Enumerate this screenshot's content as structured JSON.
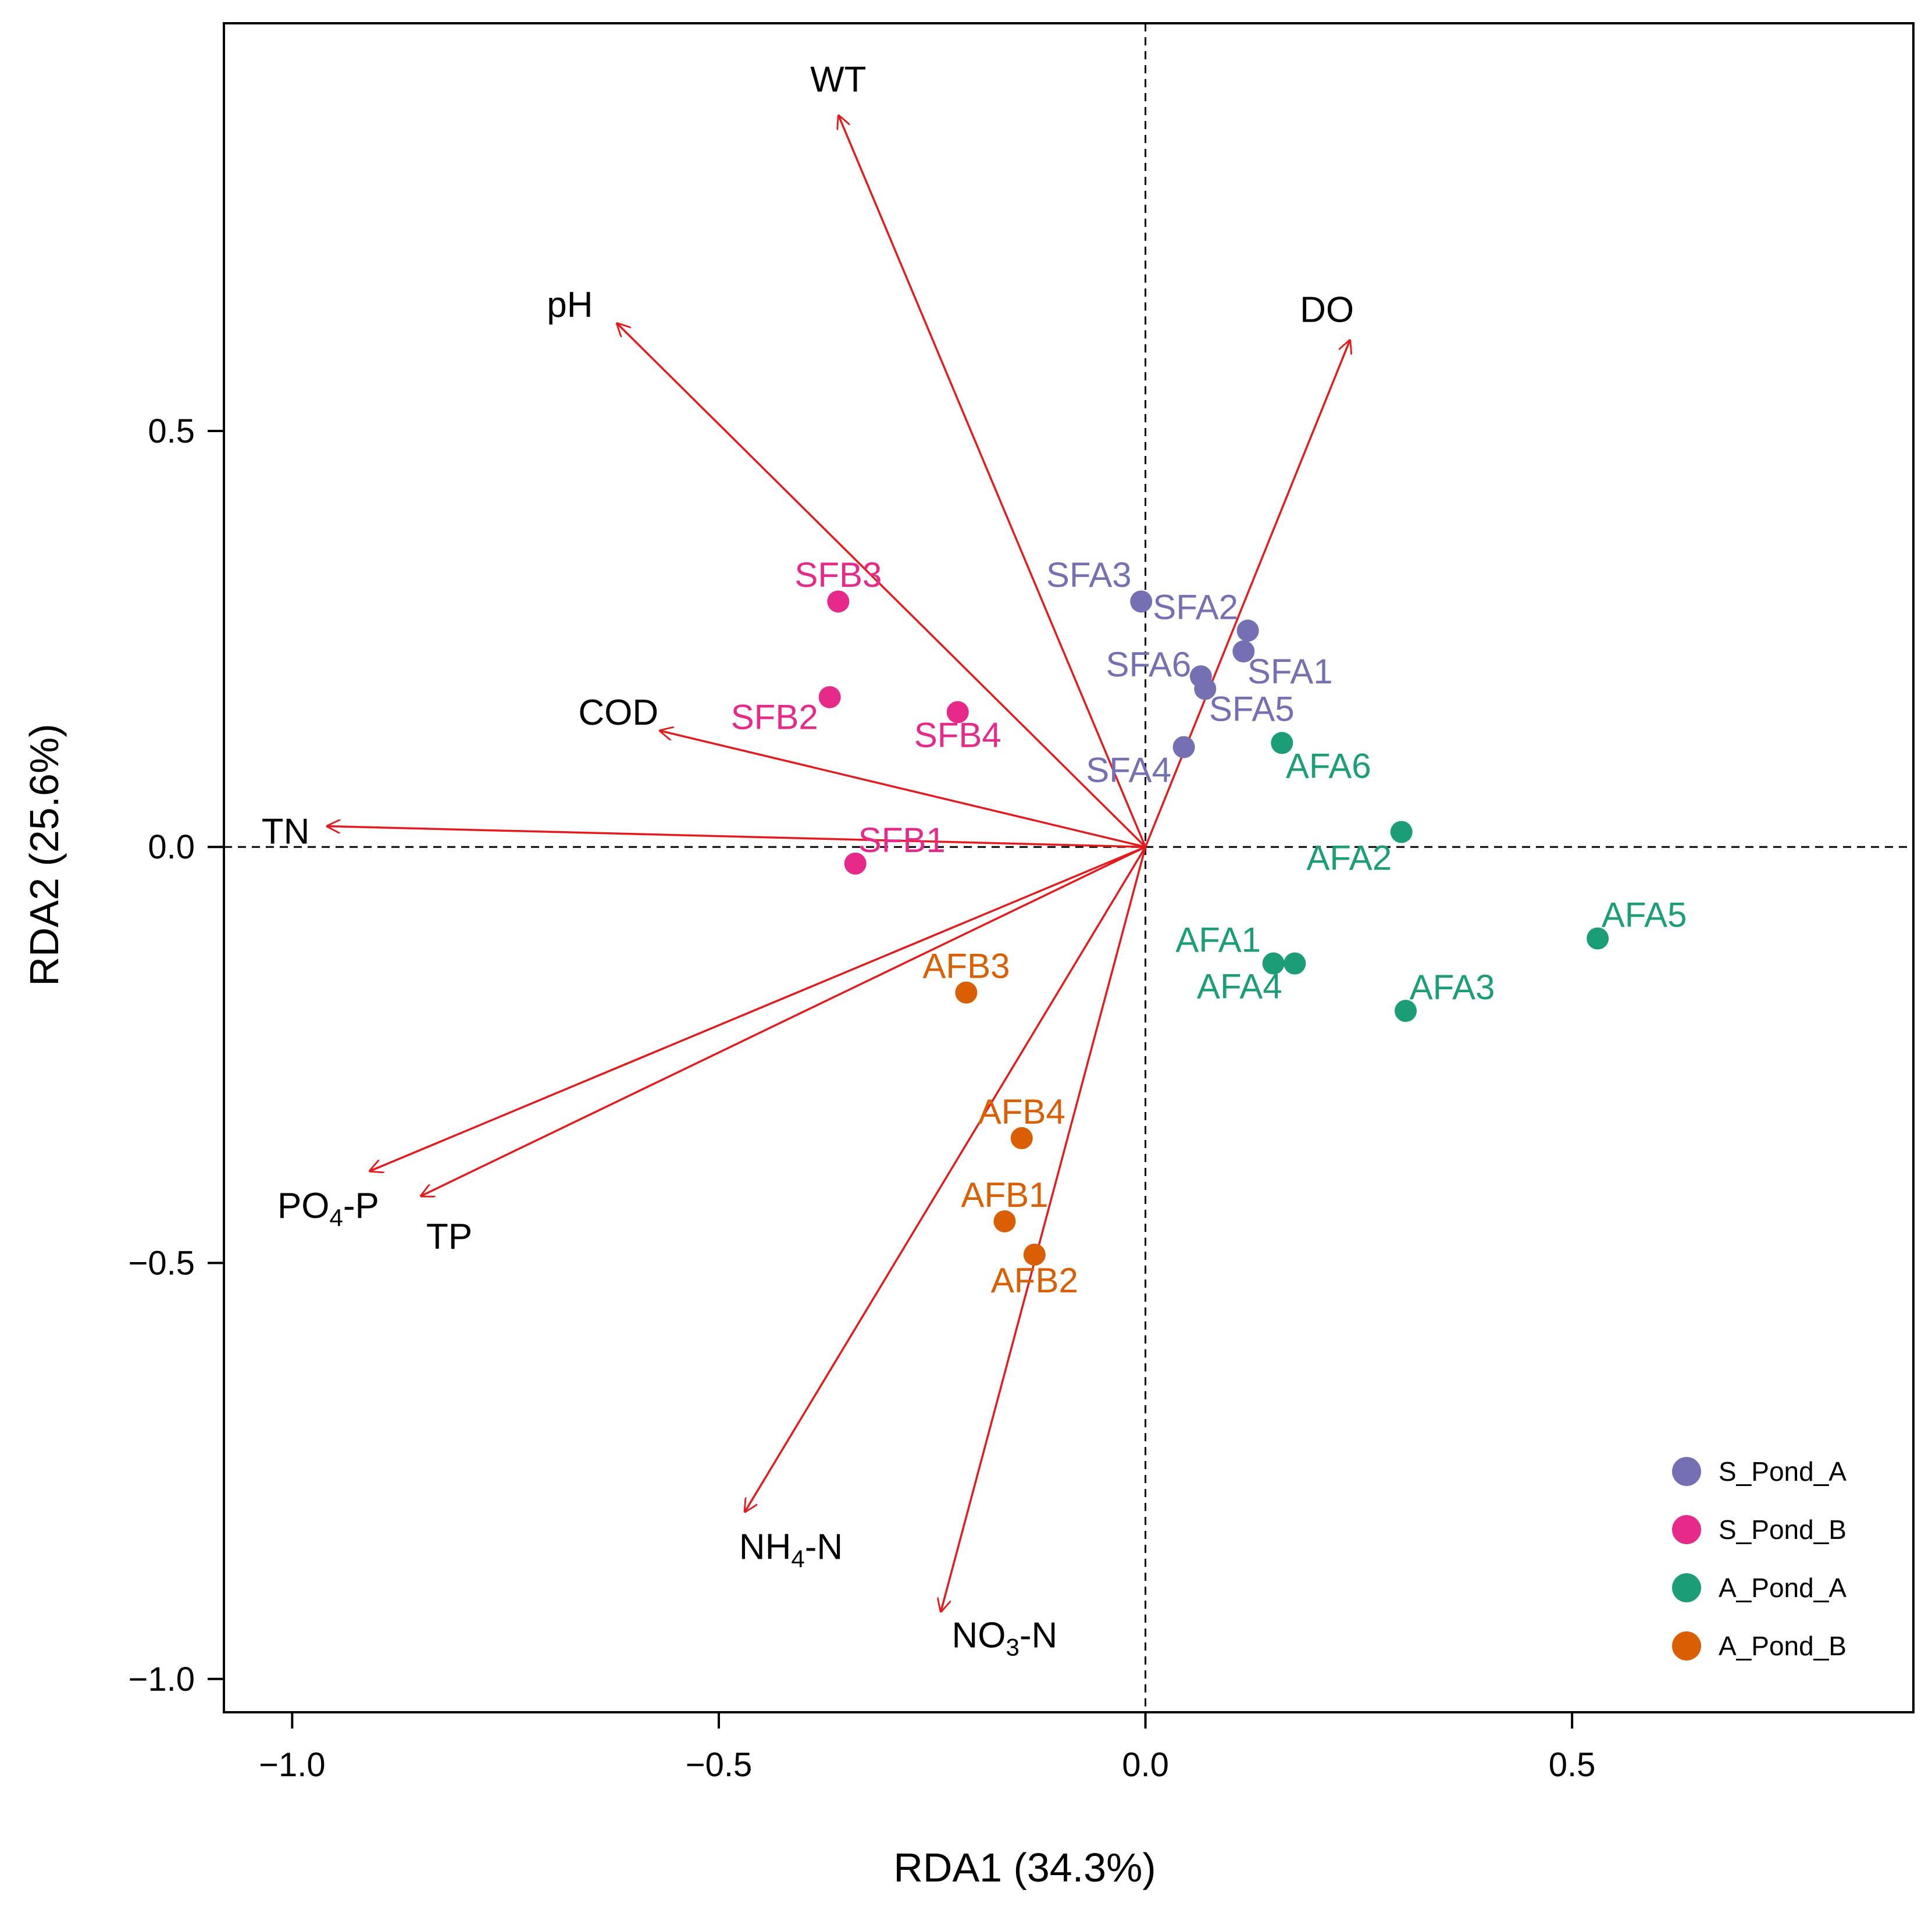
{
  "chart_data": {
    "type": "scatter",
    "subtype": "RDA biplot",
    "title": "",
    "xlabel": "RDA1 (34.3%)",
    "ylabel": "RDA2 (25.6%)",
    "xlim": [
      -1.08,
      0.9
    ],
    "ylim": [
      -1.04,
      0.99
    ],
    "xticks": [
      -1.0,
      -0.5,
      0.0,
      0.5
    ],
    "xtick_labels": [
      "−1.0",
      "−0.5",
      "0.0",
      "0.5"
    ],
    "yticks": [
      0.5,
      0.0,
      -0.5,
      -1.0
    ],
    "ytick_labels": [
      "0.5",
      "0.0",
      "−0.5",
      "−1.0"
    ],
    "reference_lines": {
      "x": 0,
      "y": 0,
      "style": "dashed"
    },
    "legend_position": "bottom-right",
    "arrow_color": "#e41a1c",
    "arrows": [
      {
        "name": "WT",
        "label": "WT",
        "x": -0.36,
        "y": 0.88
      },
      {
        "name": "pH",
        "label": "pH",
        "x": -0.62,
        "y": 0.63
      },
      {
        "name": "DO",
        "label": "DO",
        "x": 0.24,
        "y": 0.61
      },
      {
        "name": "COD",
        "label": "COD",
        "x": -0.57,
        "y": 0.14
      },
      {
        "name": "TN",
        "label": "TN",
        "x": -0.96,
        "y": 0.025
      },
      {
        "name": "PO4-P",
        "label_main": "PO",
        "label_sub": "4",
        "label_rest": "-P",
        "x": -0.91,
        "y": -0.39
      },
      {
        "name": "TP",
        "label": "TP",
        "x": -0.85,
        "y": -0.42
      },
      {
        "name": "NH4-N",
        "label_main": "NH",
        "label_sub": "4",
        "label_rest": "-N",
        "x": -0.47,
        "y": -0.8
      },
      {
        "name": "NO3-N",
        "label_main": "NO",
        "label_sub": "3",
        "label_rest": "-N",
        "x": -0.24,
        "y": -0.92
      }
    ],
    "series": [
      {
        "name": "S_Pond_A",
        "color": "#7570b3",
        "points": [
          {
            "label": "SFA1",
            "x": 0.115,
            "y": 0.235
          },
          {
            "label": "SFA2",
            "x": 0.12,
            "y": 0.26
          },
          {
            "label": "SFA3",
            "x": -0.005,
            "y": 0.295
          },
          {
            "label": "SFA4",
            "x": 0.045,
            "y": 0.12
          },
          {
            "label": "SFA5",
            "x": 0.07,
            "y": 0.19
          },
          {
            "label": "SFA6",
            "x": 0.065,
            "y": 0.205
          }
        ]
      },
      {
        "name": "S_Pond_B",
        "color": "#e7298a",
        "points": [
          {
            "label": "SFB1",
            "x": -0.34,
            "y": -0.02
          },
          {
            "label": "SFB2",
            "x": -0.37,
            "y": 0.18
          },
          {
            "label": "SFB3",
            "x": -0.36,
            "y": 0.295
          },
          {
            "label": "SFB4",
            "x": -0.22,
            "y": 0.162
          }
        ]
      },
      {
        "name": "A_Pond_A",
        "color": "#1b9e77",
        "points": [
          {
            "label": "AFA1",
            "x": 0.15,
            "y": -0.14
          },
          {
            "label": "AFA2",
            "x": 0.3,
            "y": 0.018
          },
          {
            "label": "AFA3",
            "x": 0.305,
            "y": -0.197
          },
          {
            "label": "AFA4",
            "x": 0.175,
            "y": -0.14
          },
          {
            "label": "AFA5",
            "x": 0.53,
            "y": -0.11
          },
          {
            "label": "AFA6",
            "x": 0.16,
            "y": 0.125
          }
        ]
      },
      {
        "name": "A_Pond_B",
        "color": "#d95f02",
        "points": [
          {
            "label": "AFB1",
            "x": -0.165,
            "y": -0.45
          },
          {
            "label": "AFB2",
            "x": -0.13,
            "y": -0.49
          },
          {
            "label": "AFB3",
            "x": -0.21,
            "y": -0.175
          },
          {
            "label": "AFB4",
            "x": -0.145,
            "y": -0.35
          }
        ]
      }
    ],
    "legend": [
      {
        "label": "S_Pond_A",
        "color": "#7570b3"
      },
      {
        "label": "S_Pond_B",
        "color": "#e7298a"
      },
      {
        "label": "A_Pond_A",
        "color": "#1b9e77"
      },
      {
        "label": "A_Pond_B",
        "color": "#d95f02"
      }
    ]
  }
}
